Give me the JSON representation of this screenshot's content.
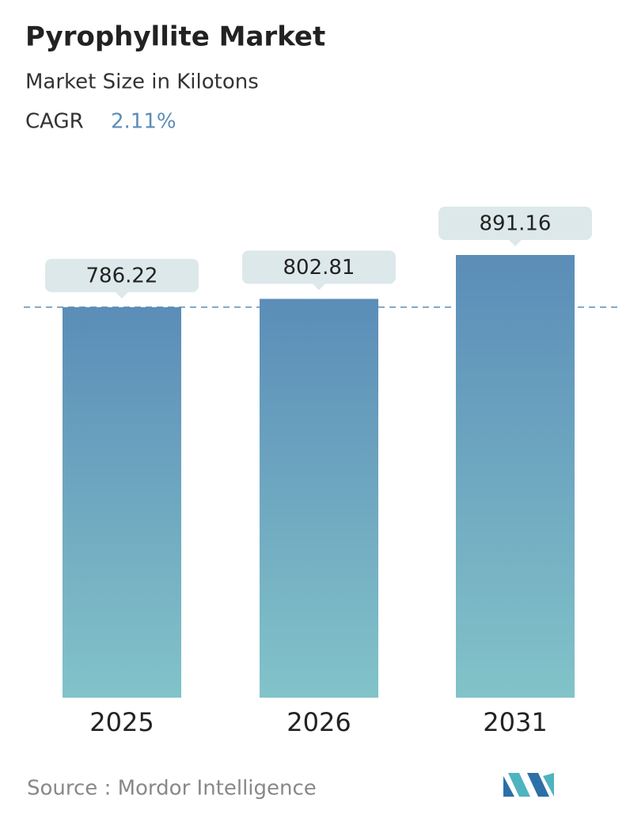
{
  "chart_data": {
    "type": "bar",
    "title": "Pyrophyllite Market",
    "subtitle": "Market Size in Kilotons",
    "cagr_label": "CAGR",
    "cagr_value": "2.11%",
    "categories": [
      "2025",
      "2026",
      "2031"
    ],
    "values": [
      786.22,
      802.81,
      891.16
    ],
    "color_top": "#5b8db8",
    "color_bottom": "#82c3c9",
    "source": "Source :  Mordor Intelligence"
  }
}
